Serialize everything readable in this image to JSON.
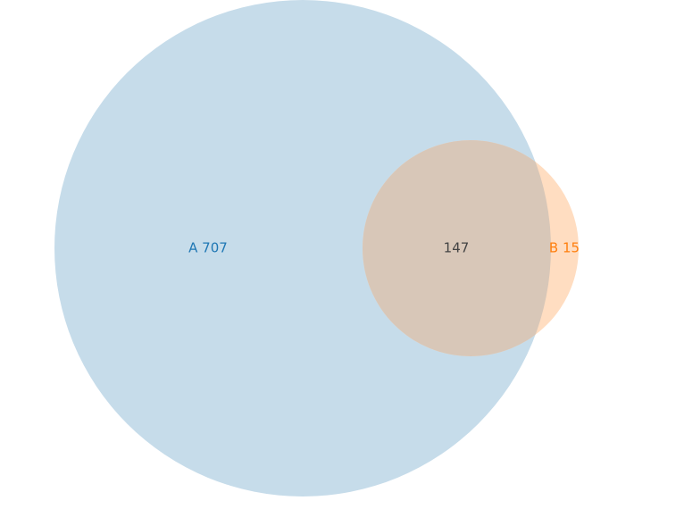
{
  "diagram": {
    "type": "venn",
    "sets": [
      {
        "id": "A",
        "label": "A",
        "only_count": "707",
        "color": "#1f77b4",
        "fill": "#c6dcea"
      },
      {
        "id": "B",
        "label": "B",
        "only_count": "15",
        "color": "#ff7f0e",
        "fill": "#ffddc1"
      }
    ],
    "intersection": {
      "count": "147",
      "color": "#444444",
      "fill": "#d8c7b8"
    },
    "labels": {
      "a_only": "A 707",
      "b_only": "B 15",
      "a_and_b": "147"
    }
  }
}
